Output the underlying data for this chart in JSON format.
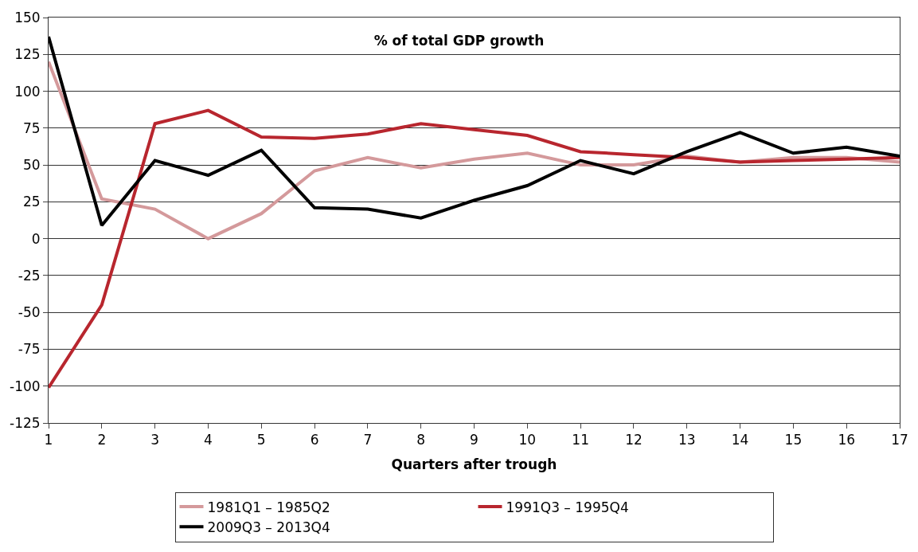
{
  "chart_data": {
    "type": "line",
    "title": "% of total GDP growth",
    "xlabel": "Quarters after trough",
    "x": [
      1,
      2,
      3,
      4,
      5,
      6,
      7,
      8,
      9,
      10,
      11,
      12,
      13,
      14,
      15,
      16,
      17
    ],
    "series": [
      {
        "name": "1981Q1 – 1985Q2",
        "color": "#d4999b",
        "values": [
          120,
          27,
          20,
          0,
          17,
          46,
          55,
          48,
          54,
          58,
          50,
          50,
          56,
          52,
          55,
          55,
          52
        ]
      },
      {
        "name": "1991Q3 – 1995Q4",
        "color": "#b8262e",
        "values": [
          -101,
          -45,
          78,
          87,
          69,
          68,
          71,
          78,
          74,
          70,
          59,
          57,
          55,
          52,
          53,
          54,
          55
        ]
      },
      {
        "name": "2009Q3 – 2013Q4",
        "color": "#000000",
        "values": [
          137,
          9,
          53,
          43,
          60,
          21,
          20,
          14,
          26,
          36,
          53,
          44,
          59,
          72,
          58,
          62,
          56
        ]
      }
    ],
    "xlim": [
      1,
      17
    ],
    "xticks": [
      1,
      2,
      3,
      4,
      5,
      6,
      7,
      8,
      9,
      10,
      11,
      12,
      13,
      14,
      15,
      16,
      17
    ],
    "ylim": [
      -125,
      150
    ],
    "yticks": [
      -125,
      -100,
      -75,
      -50,
      -25,
      0,
      25,
      50,
      75,
      100,
      125,
      150
    ],
    "grid": "y",
    "legend": "bottom",
    "marker": "none",
    "line_style": "solid"
  }
}
